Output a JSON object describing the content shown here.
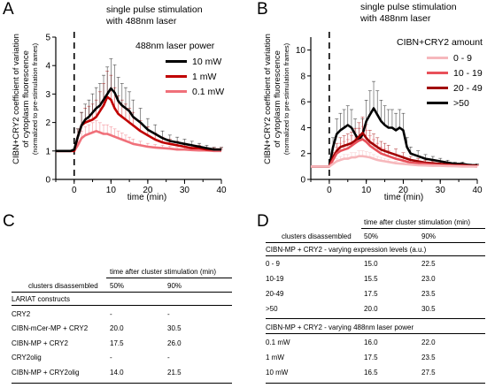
{
  "panels": {
    "a": "A",
    "b": "B",
    "c": "C",
    "d": "D"
  },
  "chart_data": [
    {
      "type": "line",
      "title": "single pulse stimulation with 488nm laser",
      "title_lines": [
        "single pulse stimulation",
        "with 488nm laser"
      ],
      "xlabel": "time (min)",
      "ylabel_lines": [
        "CIBN+CRY2 coefficient of variation",
        "of cytoplasm fluorescence"
      ],
      "ylabel_sub": "(normalized to pre-stimulation frames)",
      "xlim": [
        -5,
        40
      ],
      "ylim": [
        0,
        5
      ],
      "xticks": [
        "0",
        "10",
        "20",
        "30",
        "40"
      ],
      "yticks": [
        "0",
        "1",
        "2",
        "3",
        "4",
        "5"
      ],
      "stim_time": 0,
      "legend_title": "488nm laser power",
      "legend_position": "top-right",
      "series": [
        {
          "name": "10 mW",
          "color": "#000000",
          "x": [
            -5,
            -1,
            0,
            1,
            2,
            3,
            4,
            5,
            6,
            7,
            8,
            9,
            10,
            11,
            12,
            13,
            14,
            15,
            16,
            18,
            20,
            22,
            24,
            26,
            28,
            30,
            32,
            34,
            36,
            38,
            40
          ],
          "y": [
            1.0,
            1.0,
            1.05,
            1.5,
            1.9,
            2.1,
            2.2,
            2.35,
            2.5,
            2.6,
            2.8,
            3.0,
            3.2,
            3.05,
            2.75,
            2.6,
            2.5,
            2.4,
            2.2,
            2.0,
            1.75,
            1.6,
            1.45,
            1.35,
            1.3,
            1.25,
            1.2,
            1.15,
            1.1,
            1.05,
            1.05
          ]
        },
        {
          "name": "1 mW",
          "color": "#c00000",
          "x": [
            -5,
            -1,
            0,
            1,
            2,
            3,
            4,
            5,
            6,
            7,
            8,
            9,
            10,
            11,
            12,
            13,
            14,
            15,
            16,
            18,
            20,
            22,
            24,
            26,
            28,
            30,
            32,
            34,
            36,
            38,
            40
          ],
          "y": [
            1.0,
            1.0,
            1.0,
            1.5,
            1.9,
            2.0,
            2.05,
            2.1,
            2.2,
            2.4,
            2.6,
            2.9,
            2.8,
            2.5,
            2.3,
            2.2,
            2.1,
            2.0,
            1.9,
            1.7,
            1.55,
            1.4,
            1.3,
            1.25,
            1.2,
            1.15,
            1.1,
            1.1,
            1.05,
            1.05,
            1.05
          ]
        },
        {
          "name": "0.1 mW",
          "color": "#f0707a",
          "x": [
            -5,
            -1,
            0,
            1,
            2,
            3,
            4,
            5,
            6,
            7,
            8,
            9,
            10,
            11,
            12,
            13,
            14,
            15,
            16,
            18,
            20,
            22,
            24,
            26,
            28,
            30,
            32,
            34,
            36,
            38,
            40
          ],
          "y": [
            1.0,
            1.0,
            1.0,
            1.2,
            1.45,
            1.55,
            1.6,
            1.65,
            1.7,
            1.65,
            1.6,
            1.6,
            1.55,
            1.5,
            1.45,
            1.4,
            1.35,
            1.3,
            1.25,
            1.2,
            1.15,
            1.12,
            1.1,
            1.08,
            1.05,
            1.05,
            1.03,
            1.02,
            1.02,
            1.0,
            1.0
          ]
        }
      ]
    },
    {
      "type": "line",
      "title": "single pulse stimulation with 488nm laser",
      "title_lines": [
        "single pulse stimulation",
        "with 488nm laser"
      ],
      "xlabel": "time (min)",
      "ylabel_lines": [
        "CIBN+CRY2 coefficient of variation",
        "of cytoplasm fluorescence"
      ],
      "ylabel_sub": "(normalized to pre-stimulation frames)",
      "xlim": [
        -5,
        40
      ],
      "ylim": [
        0,
        11
      ],
      "xticks": [
        "0",
        "10",
        "20",
        "30",
        "40"
      ],
      "yticks": [
        "0",
        "2",
        "4",
        "6",
        "8",
        "10"
      ],
      "stim_time": 0,
      "legend_title": "CIBN+CRY2 amount",
      "legend_position": "top-right",
      "series": [
        {
          "name": "0 - 9",
          "color": "#f6b8bc",
          "x": [
            -5,
            -1,
            0,
            1,
            2,
            3,
            4,
            5,
            6,
            7,
            8,
            9,
            10,
            11,
            12,
            13,
            14,
            15,
            16,
            18,
            20,
            22,
            24,
            26,
            28,
            30,
            32,
            34,
            36,
            38,
            40
          ],
          "y": [
            1.0,
            1.0,
            1.0,
            1.2,
            1.4,
            1.5,
            1.6,
            1.6,
            1.7,
            1.7,
            1.8,
            1.8,
            1.75,
            1.7,
            1.6,
            1.5,
            1.45,
            1.4,
            1.35,
            1.25,
            1.2,
            1.15,
            1.1,
            1.08,
            1.05,
            1.05,
            1.03,
            1.02,
            1.0,
            1.0,
            1.0
          ]
        },
        {
          "name": "10 - 19",
          "color": "#e8505a",
          "x": [
            -5,
            -1,
            0,
            1,
            2,
            3,
            4,
            5,
            6,
            7,
            8,
            9,
            10,
            11,
            12,
            13,
            14,
            15,
            16,
            18,
            20,
            22,
            24,
            26,
            28,
            30,
            32,
            34,
            36,
            38,
            40
          ],
          "y": [
            1.0,
            1.0,
            1.0,
            1.5,
            2.0,
            2.2,
            2.3,
            2.4,
            2.6,
            2.8,
            3.0,
            3.1,
            2.9,
            2.6,
            2.4,
            2.2,
            2.0,
            1.9,
            1.8,
            1.6,
            1.45,
            1.3,
            1.25,
            1.2,
            1.15,
            1.1,
            1.08,
            1.05,
            1.05,
            1.03,
            1.0
          ]
        },
        {
          "name": "20 - 49",
          "color": "#a00000",
          "x": [
            -5,
            -1,
            0,
            1,
            2,
            3,
            4,
            5,
            6,
            7,
            8,
            9,
            10,
            11,
            12,
            13,
            14,
            15,
            16,
            18,
            20,
            22,
            24,
            26,
            28,
            30,
            32,
            34,
            36,
            38,
            40
          ],
          "y": [
            1.0,
            1.0,
            1.0,
            1.7,
            2.2,
            2.5,
            2.6,
            2.7,
            2.8,
            3.0,
            3.3,
            3.6,
            3.2,
            2.9,
            2.7,
            2.5,
            2.3,
            2.2,
            2.1,
            1.9,
            1.7,
            1.5,
            1.4,
            1.3,
            1.25,
            1.2,
            1.15,
            1.1,
            1.1,
            1.05,
            1.05
          ]
        },
        {
          "name": ">50",
          "color": "#000000",
          "x": [
            -5,
            -1,
            0,
            1,
            2,
            3,
            4,
            5,
            6,
            7,
            8,
            9,
            10,
            11,
            12,
            13,
            14,
            15,
            16,
            17,
            18,
            19,
            20,
            21,
            22,
            24,
            26,
            28,
            30,
            32,
            34,
            36,
            38,
            40
          ],
          "y": [
            1.0,
            1.0,
            1.0,
            2.5,
            3.5,
            3.8,
            4.0,
            4.2,
            4.0,
            3.5,
            3.0,
            3.5,
            4.5,
            5.0,
            5.5,
            5.0,
            4.5,
            4.2,
            4.0,
            4.0,
            3.8,
            4.0,
            3.8,
            2.5,
            2.0,
            1.8,
            1.6,
            1.5,
            1.4,
            1.3,
            1.2,
            1.2,
            1.1,
            1.1
          ]
        }
      ]
    }
  ],
  "table_c": {
    "header": "time after cluster stimulation (min)",
    "subhead_label": "clusters disassembled",
    "subhead_cols": [
      "50%",
      "90%"
    ],
    "section": "LARIAT constructs",
    "rows": [
      {
        "label": "CRY2",
        "v50": "-",
        "v90": "-"
      },
      {
        "label": "CIBN-mCer-MP + CRY2",
        "v50": "20.0",
        "v90": "30.5"
      },
      {
        "label": "CIBN-MP + CRY2",
        "v50": "17.5",
        "v90": "26.0"
      },
      {
        "label": "CRY2olig",
        "v50": "-",
        "v90": "-"
      },
      {
        "label": "CIBN-MP + CRY2olig",
        "v50": "14.0",
        "v90": "21.5"
      }
    ]
  },
  "table_d": {
    "header": "time after cluster stimulation (min)",
    "subhead_label": "clusters disassembled",
    "subhead_cols": [
      "50%",
      "90%"
    ],
    "section1": "CIBN-MP + CRY2 - varying expression levels (a.u.)",
    "rows1": [
      {
        "label": "0 - 9",
        "v50": "15.0",
        "v90": "22.5"
      },
      {
        "label": "10-19",
        "v50": "15.5",
        "v90": "23.0"
      },
      {
        "label": "20-49",
        "v50": "17.5",
        "v90": "23.5"
      },
      {
        "label": ">50",
        "v50": "20.0",
        "v90": "30.5"
      }
    ],
    "section2": "CIBN-MP + CRY2 - varying 488nm laser power",
    "rows2": [
      {
        "label": "0.1 mW",
        "v50": "16.0",
        "v90": "22.0"
      },
      {
        "label": "1 mW",
        "v50": "17.5",
        "v90": "23.5"
      },
      {
        "label": "10 mW",
        "v50": "16.5",
        "v90": "27.5"
      }
    ]
  }
}
